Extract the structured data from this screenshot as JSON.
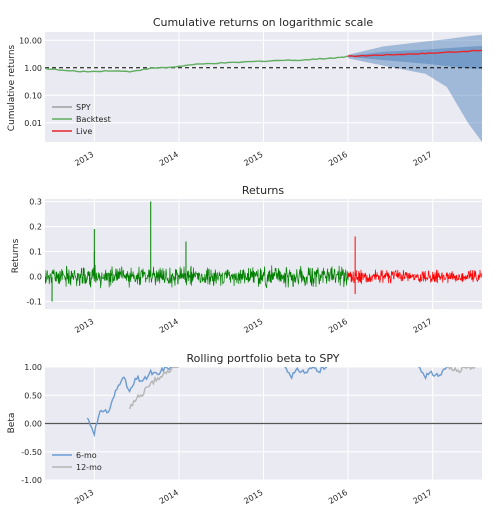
{
  "chart_data": [
    {
      "type": "line",
      "title": "Cumulative returns on logarithmic scale",
      "xlabel": "",
      "ylabel": "Cumulative returns",
      "y_scale": "log",
      "xlim": [
        "2012-06",
        "2017-08"
      ],
      "ylim": [
        0.002,
        20
      ],
      "x_ticks": [
        "2013",
        "2014",
        "2015",
        "2016",
        "2017"
      ],
      "y_ticks": [
        "10.00",
        "1.00",
        "0.10",
        "0.01"
      ],
      "grid": true,
      "legend_position": "lower-left",
      "reference_line": {
        "y": 1.0,
        "style": "dashed",
        "color": "#000000"
      },
      "series": [
        {
          "name": "SPY",
          "color": "#a0a0a0",
          "x": [
            "2012-06",
            "2017-08"
          ],
          "y": [
            1.0,
            1.0
          ]
        },
        {
          "name": "Backtest",
          "color": "#5fae5f",
          "x": [
            "2012-06",
            "2012-09",
            "2012-12",
            "2013-03",
            "2013-06",
            "2013-09",
            "2013-12",
            "2014-03",
            "2014-06",
            "2014-09",
            "2014-12",
            "2015-03",
            "2015-06",
            "2015-09",
            "2015-12",
            "2016-01"
          ],
          "y": [
            0.95,
            0.78,
            0.72,
            0.78,
            0.73,
            0.95,
            1.05,
            1.3,
            1.45,
            1.55,
            1.7,
            1.85,
            1.9,
            2.1,
            2.4,
            2.6
          ]
        },
        {
          "name": "Live",
          "color": "#e8262c",
          "x": [
            "2016-01",
            "2016-04",
            "2016-07",
            "2016-10",
            "2017-01",
            "2017-04",
            "2017-08"
          ],
          "y": [
            2.6,
            2.8,
            3.0,
            3.2,
            3.4,
            3.8,
            4.3
          ]
        }
      ],
      "cone": {
        "color": "#4a7fb8",
        "x": [
          "2016-01",
          "2016-06",
          "2016-12",
          "2017-03",
          "2017-06",
          "2017-08"
        ],
        "upper": [
          3.0,
          6.0,
          9.0,
          11.0,
          14.0,
          16.0
        ],
        "inner_upper": [
          2.7,
          3.8,
          4.6,
          5.2,
          5.8,
          6.2
        ],
        "inner_lower": [
          2.5,
          1.9,
          1.4,
          1.15,
          0.95,
          0.9
        ],
        "lower": [
          2.2,
          1.2,
          0.6,
          0.2,
          0.01,
          0.002
        ]
      }
    },
    {
      "type": "line",
      "title": "Returns",
      "xlabel": "",
      "ylabel": "Returns",
      "xlim": [
        "2012-06",
        "2017-08"
      ],
      "ylim": [
        -0.13,
        0.31
      ],
      "x_ticks": [
        "2013",
        "2014",
        "2015",
        "2016",
        "2017"
      ],
      "y_ticks": [
        "0.3",
        "0.2",
        "0.1",
        "0.0",
        "-0.1"
      ],
      "grid": true,
      "series": [
        {
          "name": "",
          "color": "#008000",
          "x_range": [
            "2012-06",
            "2016-01"
          ],
          "typical_amplitude": 0.03,
          "spikes": [
            {
              "x": "2013-01",
              "y": 0.19
            },
            {
              "x": "2013-01",
              "y": 0.1
            },
            {
              "x": "2013-09",
              "y": 0.3
            },
            {
              "x": "2014-02",
              "y": 0.14
            },
            {
              "x": "2012-07",
              "y": -0.1
            }
          ]
        },
        {
          "name": "",
          "color": "#ff0000",
          "x_range": [
            "2016-01",
            "2017-08"
          ],
          "typical_amplitude": 0.02,
          "spikes": [
            {
              "x": "2016-02",
              "y": 0.16
            },
            {
              "x": "2016-02",
              "y": -0.07
            }
          ]
        }
      ]
    },
    {
      "type": "line",
      "title": "Rolling portfolio beta to SPY",
      "xlabel": "",
      "ylabel": "Beta",
      "xlim": [
        "2012-06",
        "2017-08"
      ],
      "ylim": [
        -1.0,
        1.0
      ],
      "x_ticks": [
        "2013",
        "2014",
        "2015",
        "2016",
        "2017"
      ],
      "y_ticks": [
        "1.00",
        "0.50",
        "0.00",
        "-0.50",
        "-1.00"
      ],
      "grid": true,
      "legend_position": "lower-left",
      "reference_line": {
        "y": 0.0,
        "style": "solid",
        "color": "#555555"
      },
      "series": [
        {
          "name": "6-mo",
          "color": "#6b9bd1",
          "segments": [
            {
              "x": [
                "2012-12",
                "2013-01",
                "2013-02",
                "2013-03",
                "2013-04",
                "2013-05",
                "2013-06",
                "2013-07",
                "2013-08",
                "2013-09",
                "2013-10",
                "2013-11",
                "2013-12"
              ],
              "y": [
                0.1,
                -0.15,
                0.25,
                0.2,
                0.55,
                0.85,
                0.55,
                0.8,
                0.75,
                0.9,
                0.85,
                1.0,
                1.0
              ]
            },
            {
              "x": [
                "2015-04",
                "2015-05",
                "2015-06",
                "2015-07",
                "2015-08",
                "2015-09",
                "2015-10"
              ],
              "y": [
                1.0,
                0.85,
                0.95,
                0.9,
                1.0,
                0.95,
                1.0
              ]
            },
            {
              "x": [
                "2016-11",
                "2016-12",
                "2017-01",
                "2017-02",
                "2017-03"
              ],
              "y": [
                1.0,
                0.85,
                0.88,
                0.85,
                1.0
              ]
            }
          ]
        },
        {
          "name": "12-mo",
          "color": "#b5b5b5",
          "segments": [
            {
              "x": [
                "2013-06",
                "2013-07",
                "2013-08",
                "2013-09",
                "2013-10",
                "2013-11",
                "2013-12",
                "2014-01"
              ],
              "y": [
                0.25,
                0.45,
                0.55,
                0.7,
                0.8,
                0.9,
                0.95,
                1.0
              ]
            },
            {
              "x": [
                "2017-03",
                "2017-04",
                "2017-05",
                "2017-06",
                "2017-07"
              ],
              "y": [
                1.0,
                0.95,
                0.95,
                1.0,
                1.0
              ]
            }
          ]
        }
      ]
    }
  ]
}
